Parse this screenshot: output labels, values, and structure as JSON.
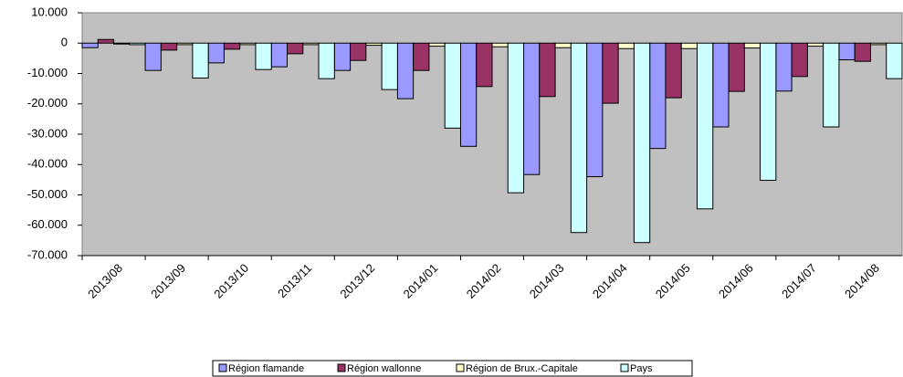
{
  "chart_data": {
    "type": "bar",
    "categories": [
      "2013/08",
      "2013/09",
      "2013/10",
      "2013/11",
      "2013/12",
      "2014/01",
      "2014/02",
      "2014/03",
      "2014/04",
      "2014/05",
      "2014/06",
      "2014/07",
      "2014/08"
    ],
    "series": [
      {
        "name": "Région flamande",
        "color": "#9999ff",
        "values": [
          -1500,
          -9000,
          -6500,
          -7800,
          -9000,
          -18300,
          -34000,
          -43300,
          -44000,
          -34700,
          -27600,
          -15800,
          -5500
        ]
      },
      {
        "name": "Région wallonne",
        "color": "#993366",
        "values": [
          1200,
          -2300,
          -2000,
          -3500,
          -5700,
          -9000,
          -14300,
          -17600,
          -19800,
          -18000,
          -15900,
          -11000,
          -6000
        ]
      },
      {
        "name": "Région de Brux.-Capitale",
        "color": "#ffffcc",
        "values": [
          -300,
          -500,
          -500,
          -500,
          -700,
          -1000,
          -1200,
          -1500,
          -1800,
          -1800,
          -1600,
          -1000,
          -500
        ]
      },
      {
        "name": "Pays",
        "color": "#ccffff",
        "values": [
          -500,
          -11500,
          -8700,
          -11700,
          -15300,
          -28000,
          -49300,
          -62400,
          -65700,
          -54600,
          -45200,
          -27600,
          -11700
        ]
      }
    ],
    "ylim": [
      -70000,
      10000
    ],
    "yticks": [
      {
        "value": 10000,
        "label": "10.000"
      },
      0,
      {
        "value": -10000,
        "label": "-10.000"
      },
      {
        "value": -20000,
        "label": "-20.000"
      },
      {
        "value": -30000,
        "label": "-30.000"
      },
      {
        "value": -40000,
        "label": "-40.000"
      },
      {
        "value": -50000,
        "label": "-50.000"
      },
      {
        "value": -60000,
        "label": "-60.000"
      },
      {
        "value": -70000,
        "label": "-70.000"
      }
    ],
    "plot_background": "#c0c0c0",
    "legend": "bottom"
  }
}
